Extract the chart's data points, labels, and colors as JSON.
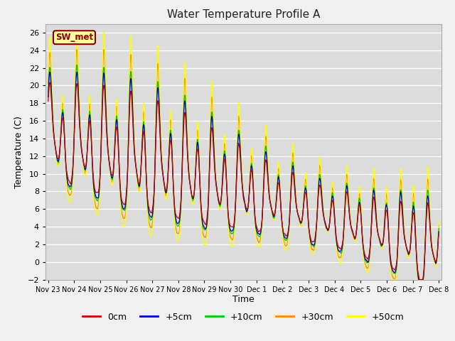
{
  "title": "Water Temperature Profile A",
  "xlabel": "Time",
  "ylabel": "Temperature (C)",
  "ylim": [
    -2,
    27
  ],
  "yticks": [
    -2,
    0,
    2,
    4,
    6,
    8,
    10,
    12,
    14,
    16,
    18,
    20,
    22,
    24,
    26
  ],
  "bg_color": "#dcdcdc",
  "fig_color": "#f0f0f0",
  "series_colors": {
    "0cm": "#cc0000",
    "+5cm": "#0000cc",
    "+10cm": "#00cc00",
    "+30cm": "#ff8800",
    "+50cm": "#ffff00"
  },
  "legend_label": "SW_met",
  "x_tick_labels": [
    "Nov 23",
    "Nov 24",
    "Nov 25",
    "Nov 26",
    "Nov 27",
    "Nov 28",
    "Nov 29",
    "Nov 30",
    "Dec 1",
    "Dec 2",
    "Dec 3",
    "Dec 4",
    "Dec 5",
    "Dec 6",
    "Dec 7",
    "Dec 8"
  ],
  "n_points": 768
}
